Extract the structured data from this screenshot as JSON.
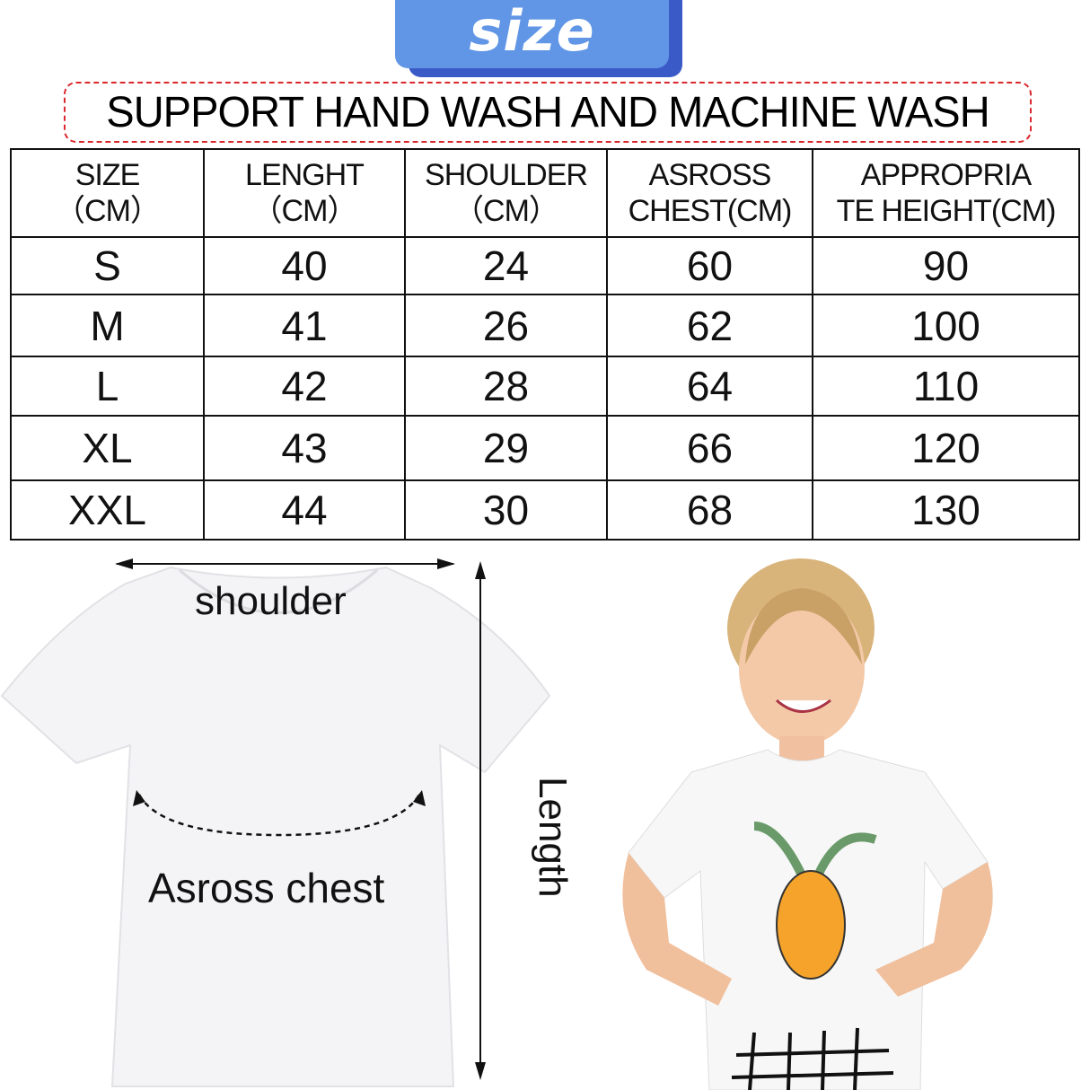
{
  "banner": {
    "title": "size",
    "color": "#6196e6"
  },
  "notice": "SUPPORT HAND WASH AND MACHINE WASH",
  "table": {
    "headers": [
      [
        "SIZE",
        "（CM）"
      ],
      [
        "LENGHT",
        "（CM）"
      ],
      [
        "SHOULDER",
        "（CM）"
      ],
      [
        "ASROSS",
        "CHEST(CM)"
      ],
      [
        "APPROPRIA",
        "TE HEIGHT(CM)"
      ]
    ],
    "rows": [
      [
        "S",
        "40",
        "24",
        "60",
        "90"
      ],
      [
        "M",
        "41",
        "26",
        "62",
        "100"
      ],
      [
        "L",
        "42",
        "28",
        "64",
        "110"
      ],
      [
        "XL",
        "43",
        "29",
        "66",
        "120"
      ],
      [
        "XXL",
        "44",
        "30",
        "68",
        "130"
      ]
    ]
  },
  "diagram": {
    "shoulder": "shoulder",
    "chest": "Asross chest",
    "length": "Length"
  }
}
